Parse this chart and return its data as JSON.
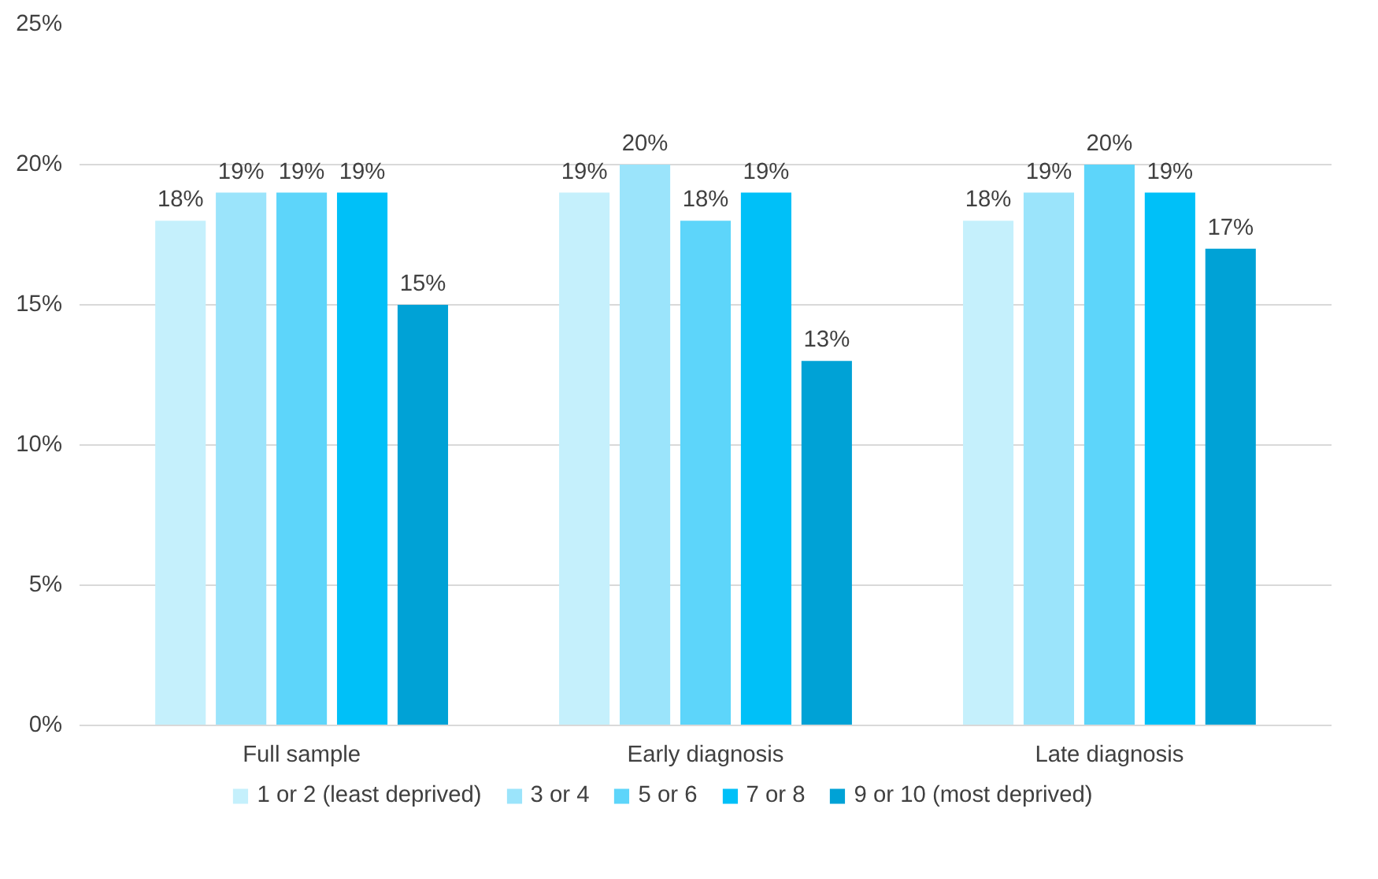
{
  "chart_data": {
    "type": "bar",
    "categories": [
      "Full sample",
      "Early diagnosis",
      "Late diagnosis"
    ],
    "series": [
      {
        "name": "1 or 2 (least deprived)",
        "color": "#c5f0fc",
        "values": [
          18,
          19,
          18
        ],
        "value_labels": [
          "18%",
          "19%",
          "18%"
        ]
      },
      {
        "name": "3 or 4",
        "color": "#9be4fb",
        "values": [
          19,
          20,
          19
        ],
        "value_labels": [
          "19%",
          "20%",
          "19%"
        ]
      },
      {
        "name": "5 or 6",
        "color": "#5dd5fa",
        "values": [
          19,
          18,
          20
        ],
        "value_labels": [
          "19%",
          "18%",
          "20%"
        ]
      },
      {
        "name": "7 or 8",
        "color": "#00c0f8",
        "values": [
          19,
          19,
          19
        ],
        "value_labels": [
          "19%",
          "19%",
          "19%"
        ]
      },
      {
        "name": "9 or 10 (most deprived)",
        "color": "#00a2d6",
        "values": [
          15,
          13,
          17
        ],
        "value_labels": [
          "15%",
          "13%",
          "17%"
        ]
      }
    ],
    "ylim": [
      0,
      25
    ],
    "yticks": [
      {
        "value": 0,
        "label": "0%"
      },
      {
        "value": 5,
        "label": "5%"
      },
      {
        "value": 10,
        "label": "10%"
      },
      {
        "value": 15,
        "label": "15%"
      },
      {
        "value": 20,
        "label": "20%"
      },
      {
        "value": 25,
        "label": "25%"
      }
    ],
    "grid": "y",
    "legend": "bottom"
  }
}
